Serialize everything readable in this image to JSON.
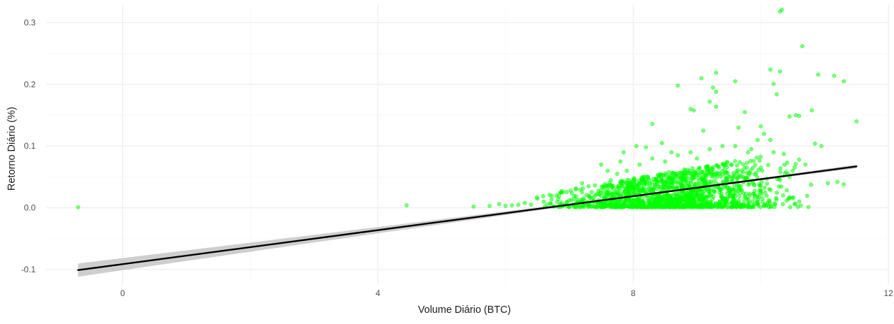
{
  "chart_data": {
    "type": "scatter",
    "title": "",
    "xlabel": "Volume Diário (BTC)",
    "ylabel": "Retorno Diário (%)",
    "xlim": [
      -1.2,
      12.0
    ],
    "ylim": [
      -0.125,
      0.33
    ],
    "x_ticks": [
      0,
      4,
      8,
      12
    ],
    "x_tick_labels": [
      "0",
      "4",
      "8",
      "12"
    ],
    "y_ticks": [
      -0.1,
      0.0,
      0.1,
      0.2,
      0.3
    ],
    "y_tick_labels": [
      "-0.1",
      "0.0",
      "0.1",
      "0.2",
      "0.3"
    ],
    "grid": true,
    "legend": "none",
    "point_color": "#00ff00",
    "fit_color": "#000000",
    "ribbon_color": "#bdbdbd",
    "fit_line": {
      "x": [
        -0.7,
        11.5
      ],
      "y": [
        -0.101,
        0.067
      ]
    },
    "points": [
      [
        -0.7,
        0.001
      ],
      [
        4.45,
        0.004
      ],
      [
        5.5,
        0.002
      ],
      [
        5.75,
        0.003
      ],
      [
        10.3,
        0.318
      ],
      [
        10.33,
        0.321
      ],
      [
        10.65,
        0.262
      ],
      [
        10.15,
        0.224
      ],
      [
        10.3,
        0.221
      ],
      [
        9.3,
        0.219
      ],
      [
        9.07,
        0.21
      ],
      [
        9.6,
        0.205
      ],
      [
        10.2,
        0.201
      ],
      [
        11.3,
        0.205
      ],
      [
        10.9,
        0.216
      ],
      [
        11.15,
        0.214
      ],
      [
        9.25,
        0.195
      ],
      [
        9.3,
        0.188
      ],
      [
        8.7,
        0.198
      ],
      [
        10.25,
        0.184
      ],
      [
        9.2,
        0.172
      ],
      [
        9.3,
        0.164
      ],
      [
        8.9,
        0.16
      ],
      [
        8.95,
        0.158
      ],
      [
        9.75,
        0.155
      ],
      [
        8.3,
        0.136
      ],
      [
        10.8,
        0.158
      ],
      [
        10.55,
        0.15
      ],
      [
        10.45,
        0.148
      ],
      [
        11.5,
        0.14
      ],
      [
        10.6,
        0.149
      ],
      [
        10.0,
        0.132
      ],
      [
        10.05,
        0.12
      ],
      [
        9.65,
        0.13
      ],
      [
        9.1,
        0.125
      ],
      [
        10.95,
        0.1
      ],
      [
        10.85,
        0.104
      ],
      [
        10.15,
        0.11
      ],
      [
        11.3,
        0.038
      ],
      [
        11.2,
        0.042
      ],
      [
        11.05,
        0.04
      ],
      [
        10.45,
        0.05
      ],
      [
        10.3,
        0.045
      ],
      [
        10.4,
        0.058
      ],
      [
        10.5,
        0.06
      ],
      [
        10.6,
        0.078
      ],
      [
        10.2,
        0.09
      ],
      [
        10.7,
        0.07
      ],
      [
        10.1,
        0.005
      ],
      [
        10.35,
        0.02
      ],
      [
        7.8,
        0.075
      ],
      [
        7.85,
        0.09
      ],
      [
        8.05,
        0.1
      ],
      [
        8.2,
        0.098
      ],
      [
        8.45,
        0.105
      ],
      [
        8.6,
        0.09
      ],
      [
        7.6,
        0.06
      ],
      [
        7.5,
        0.07
      ],
      [
        7.2,
        0.04
      ],
      [
        7.3,
        0.035
      ],
      [
        6.9,
        0.025
      ],
      [
        6.8,
        0.02
      ],
      [
        6.6,
        0.01
      ],
      [
        6.5,
        0.015
      ],
      [
        6.3,
        0.008
      ],
      [
        6.2,
        0.005
      ],
      [
        6.0,
        0.003
      ],
      [
        5.9,
        0.006
      ],
      [
        6.1,
        0.004
      ],
      [
        6.4,
        0.005
      ],
      [
        6.7,
        0.007
      ],
      [
        7.0,
        0.012
      ],
      [
        7.1,
        0.03
      ],
      [
        7.4,
        0.02
      ],
      [
        7.55,
        0.015
      ],
      [
        7.65,
        0.045
      ],
      [
        7.75,
        0.055
      ],
      [
        7.9,
        0.06
      ],
      [
        8.1,
        0.07
      ],
      [
        8.3,
        0.08
      ],
      [
        8.5,
        0.075
      ],
      [
        8.7,
        0.085
      ],
      [
        8.9,
        0.09
      ],
      [
        9.0,
        0.08
      ],
      [
        9.2,
        0.095
      ],
      [
        9.4,
        0.1
      ],
      [
        9.6,
        0.1
      ],
      [
        9.8,
        0.09
      ],
      [
        9.85,
        0.095
      ],
      [
        9.95,
        0.11
      ],
      [
        10.0,
        0.065
      ],
      [
        9.7,
        0.06
      ],
      [
        9.5,
        0.05
      ],
      [
        9.3,
        0.055
      ],
      [
        9.1,
        0.045
      ],
      [
        8.8,
        0.05
      ],
      [
        8.6,
        0.04
      ],
      [
        8.4,
        0.035
      ],
      [
        8.2,
        0.03
      ],
      [
        8.0,
        0.025
      ],
      [
        7.95,
        0.018
      ],
      [
        8.15,
        0.012
      ],
      [
        8.35,
        0.015
      ],
      [
        8.55,
        0.01
      ],
      [
        8.75,
        0.012
      ],
      [
        8.95,
        0.008
      ],
      [
        9.15,
        0.01
      ],
      [
        9.35,
        0.006
      ],
      [
        9.55,
        0.008
      ],
      [
        9.75,
        0.004
      ],
      [
        9.95,
        0.006
      ],
      [
        10.05,
        0.003
      ]
    ]
  }
}
